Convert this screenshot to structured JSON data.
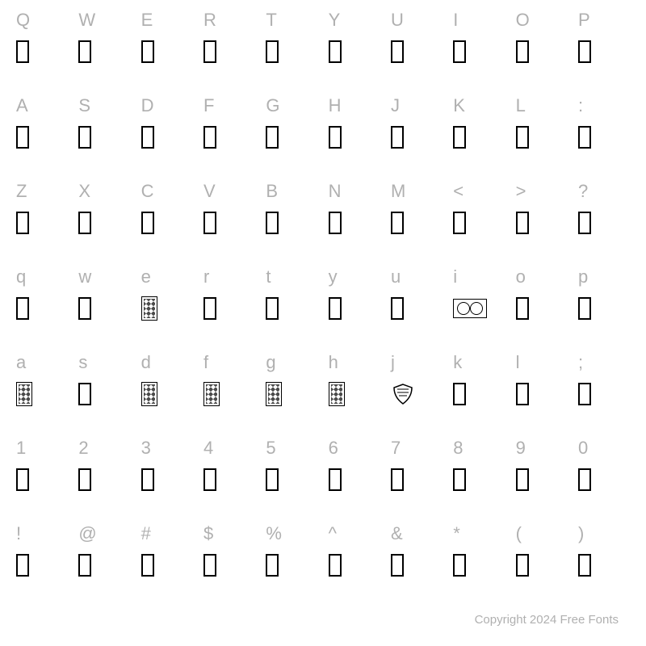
{
  "rows": [
    {
      "chars": [
        "Q",
        "W",
        "E",
        "R",
        "T",
        "Y",
        "U",
        "I",
        "O",
        "P"
      ],
      "glyphs": [
        "box",
        "box",
        "box",
        "box",
        "box",
        "box",
        "box",
        "box",
        "box",
        "box"
      ]
    },
    {
      "chars": [
        "A",
        "S",
        "D",
        "F",
        "G",
        "H",
        "J",
        "K",
        "L",
        ":"
      ],
      "glyphs": [
        "box",
        "box",
        "box",
        "box",
        "box",
        "box",
        "box",
        "box",
        "box",
        "box"
      ]
    },
    {
      "chars": [
        "Z",
        "X",
        "C",
        "V",
        "B",
        "N",
        "M",
        "<",
        ">",
        "?"
      ],
      "glyphs": [
        "box",
        "box",
        "box",
        "box",
        "box",
        "box",
        "box",
        "box",
        "box",
        "box"
      ]
    },
    {
      "chars": [
        "q",
        "w",
        "e",
        "r",
        "t",
        "y",
        "u",
        "i",
        "o",
        "p"
      ],
      "glyphs": [
        "box",
        "box",
        "decorated",
        "box",
        "box",
        "box",
        "box",
        "wide",
        "box",
        "box"
      ]
    },
    {
      "chars": [
        "a",
        "s",
        "d",
        "f",
        "g",
        "h",
        "j",
        "k",
        "l",
        ";"
      ],
      "glyphs": [
        "decorated",
        "box",
        "decorated",
        "decorated",
        "decorated",
        "decorated",
        "shield",
        "box",
        "box",
        "box"
      ]
    },
    {
      "chars": [
        "1",
        "2",
        "3",
        "4",
        "5",
        "6",
        "7",
        "8",
        "9",
        "0"
      ],
      "glyphs": [
        "box",
        "box",
        "box",
        "box",
        "box",
        "box",
        "box",
        "box",
        "box",
        "box"
      ]
    },
    {
      "chars": [
        "!",
        "@",
        "#",
        "$",
        "%",
        "^",
        "&",
        "*",
        "(",
        ")"
      ],
      "glyphs": [
        "box",
        "box",
        "box",
        "box",
        "box",
        "box",
        "box",
        "box",
        "box",
        "box"
      ]
    }
  ],
  "footer_text": "Copyright 2024 Free Fonts",
  "colors": {
    "label": "#b0b0b0",
    "glyph_border": "#000000",
    "background": "#ffffff"
  },
  "typography": {
    "label_fontsize": 22,
    "footer_fontsize": 15
  }
}
